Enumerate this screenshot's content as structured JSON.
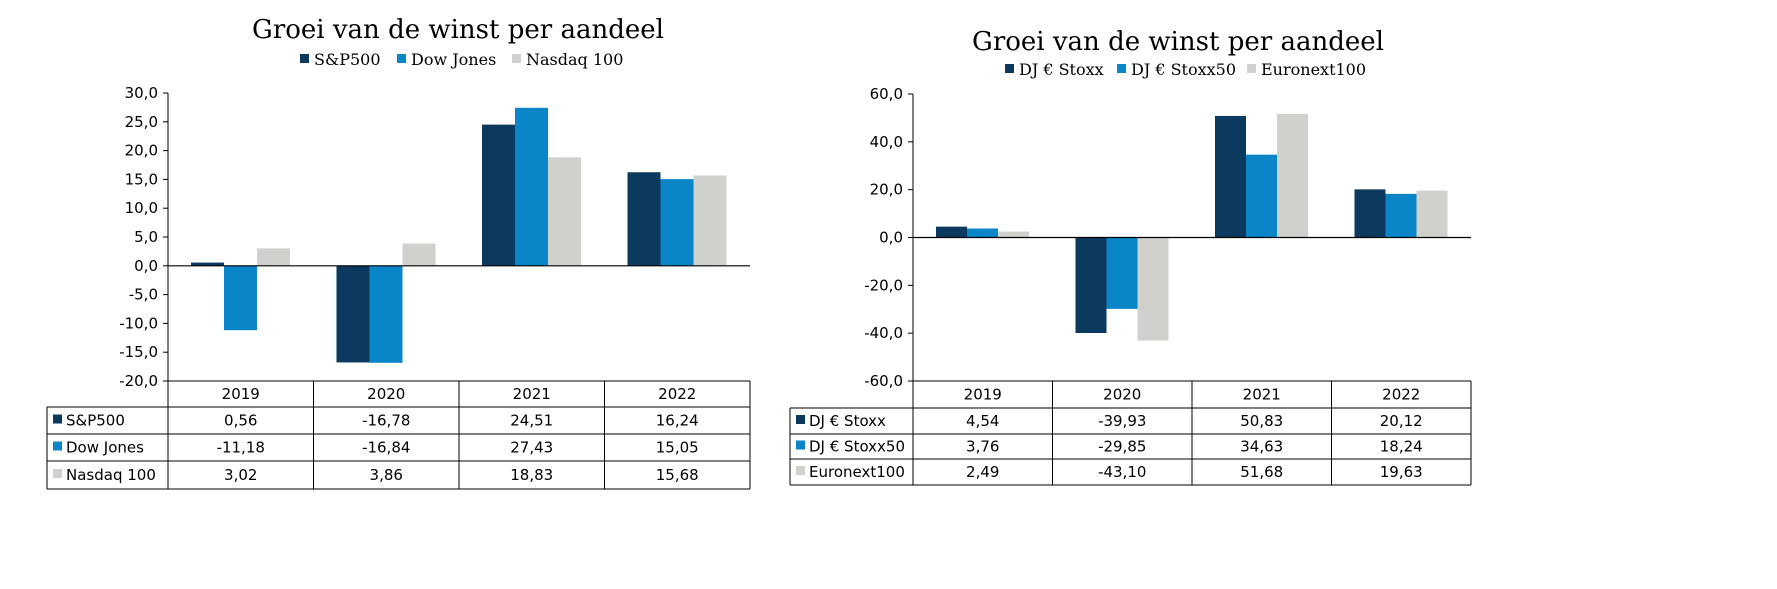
{
  "chart_data": [
    {
      "type": "bar",
      "title": "Groei van de winst per aandeel",
      "categories": [
        "2019",
        "2020",
        "2021",
        "2022"
      ],
      "series": [
        {
          "name": "S&P500",
          "color": "#0b3a5e",
          "values": [
            0.56,
            -16.78,
            24.51,
            16.24
          ],
          "labels": [
            "0,56",
            "-16,78",
            "24,51",
            "16,24"
          ]
        },
        {
          "name": "Dow Jones",
          "color": "#0a86c8",
          "values": [
            -11.18,
            -16.84,
            27.43,
            15.05
          ],
          "labels": [
            "-11,18",
            "-16,84",
            "27,43",
            "15,05"
          ]
        },
        {
          "name": "Nasdaq 100",
          "color": "#d0d0cc",
          "values": [
            3.02,
            3.86,
            18.83,
            15.68
          ],
          "labels": [
            "3,02",
            "3,86",
            "18,83",
            "15,68"
          ]
        }
      ],
      "ylim": [
        -20,
        30
      ],
      "yticks": [
        30,
        25,
        20,
        15,
        10,
        5,
        0,
        -5,
        -10,
        -15,
        -20
      ],
      "ytick_labels": [
        "30,0",
        "25,0",
        "20,0",
        "15,0",
        "10,0",
        "5,0",
        "0,0",
        "-5,0",
        "-10,0",
        "-15,0",
        "-20,0"
      ],
      "legend": "top",
      "data_table": true,
      "grid": false
    },
    {
      "type": "bar",
      "title": "Groei van de winst per aandeel",
      "categories": [
        "2019",
        "2020",
        "2021",
        "2022"
      ],
      "series": [
        {
          "name": "DJ € Stoxx",
          "color": "#0b3a5e",
          "values": [
            4.54,
            -39.93,
            50.83,
            20.12
          ],
          "labels": [
            "4,54",
            "-39,93",
            "50,83",
            "20,12"
          ]
        },
        {
          "name": "DJ € Stoxx50",
          "color": "#0a86c8",
          "values": [
            3.76,
            -29.85,
            34.63,
            18.24
          ],
          "labels": [
            "3,76",
            "-29,85",
            "34,63",
            "18,24"
          ]
        },
        {
          "name": "Euronext100",
          "color": "#d0d0cc",
          "values": [
            2.49,
            -43.1,
            51.68,
            19.63
          ],
          "labels": [
            "2,49",
            "-43,10",
            "51,68",
            "19,63"
          ]
        }
      ],
      "ylim": [
        -60,
        60
      ],
      "yticks": [
        60,
        40,
        20,
        0,
        -20,
        -40,
        -60
      ],
      "ytick_labels": [
        "60,0",
        "40,0",
        "20,0",
        "0,0",
        "-20,0",
        "-40,0",
        "-60,0"
      ],
      "legend": "top",
      "data_table": true,
      "grid": false
    }
  ]
}
